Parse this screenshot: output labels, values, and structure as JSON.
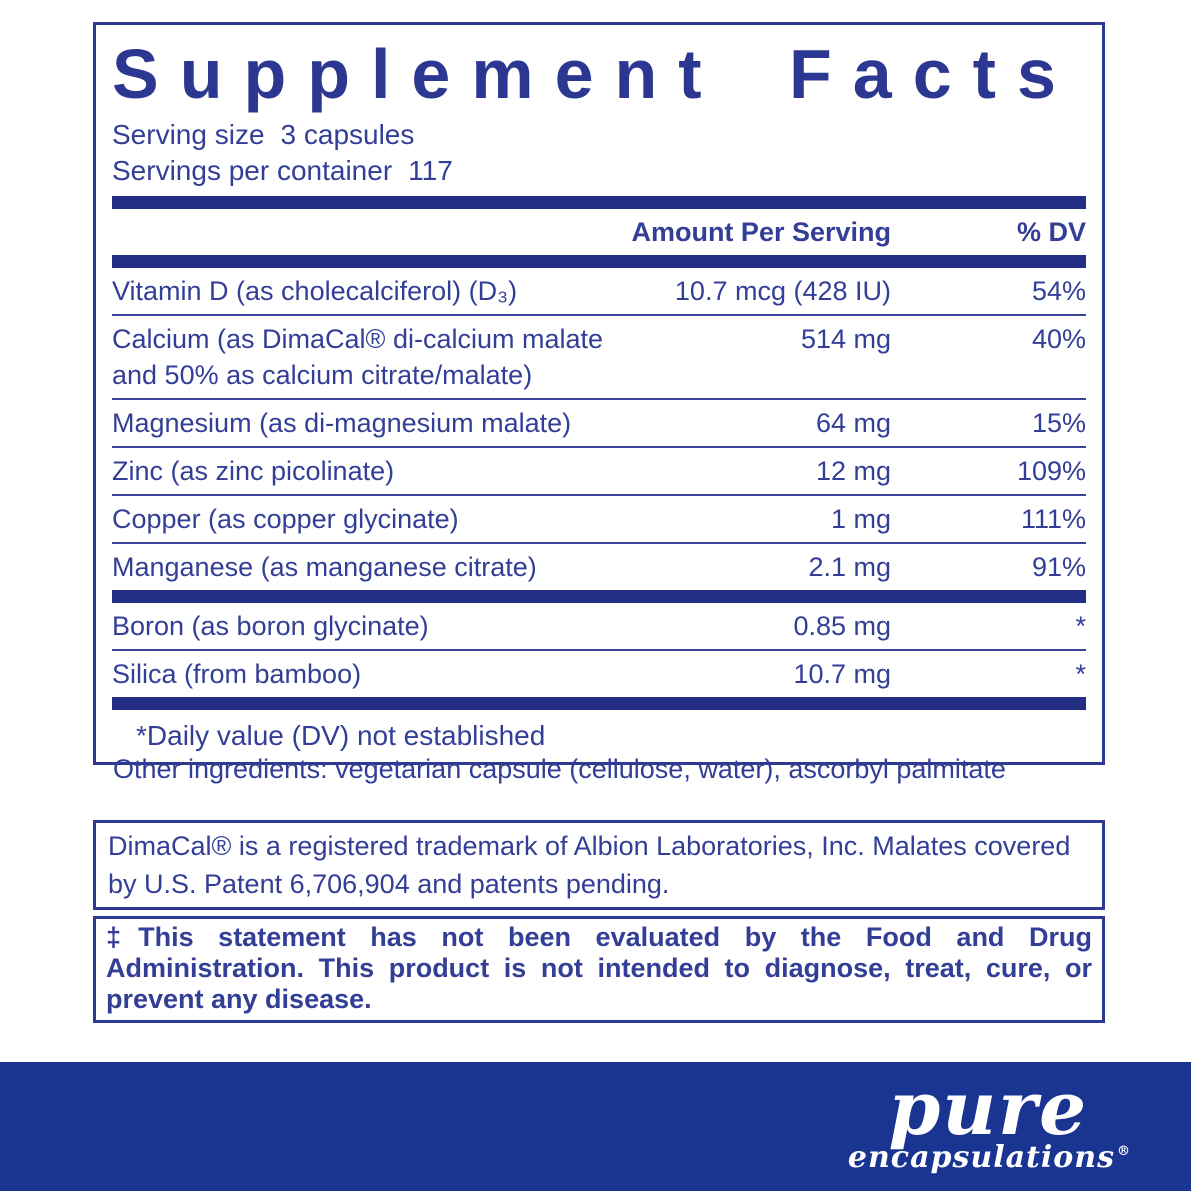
{
  "colors": {
    "text_blue": "#333e96",
    "title_blue": "#2c3791",
    "bar_navy": "#232e84",
    "rule_blue": "#3a459c",
    "border_blue": "#2e3a92",
    "footer_bg": "#1a3492",
    "logo_white": "#ffffff"
  },
  "panel": {
    "title": "Supplement Facts",
    "serving_size_label": "Serving size",
    "serving_size_value": "3 capsules",
    "servings_label": "Servings per container",
    "servings_value": "117",
    "col_amount": "Amount Per Serving",
    "col_dv": "% DV",
    "rows": [
      {
        "name": "Vitamin D (as cholecalciferol) (D₃)",
        "amount": "10.7 mcg (428 IU)",
        "dv": "54%"
      },
      {
        "name": "Calcium (as DimaCal® di-calcium malate and 50% as calcium citrate/malate)",
        "amount": "514 mg",
        "dv": "40%"
      },
      {
        "name": "Magnesium (as di-magnesium malate)",
        "amount": "64 mg",
        "dv": "15%"
      },
      {
        "name": "Zinc (as zinc picolinate)",
        "amount": "12 mg",
        "dv": "109%"
      },
      {
        "name": "Copper (as copper glycinate)",
        "amount": "1 mg",
        "dv": "111%"
      },
      {
        "name": "Manganese (as manganese citrate)",
        "amount": "2.1 mg",
        "dv": "91%"
      },
      {
        "name": "Boron (as boron glycinate)",
        "amount": "0.85 mg",
        "dv": "*"
      },
      {
        "name": "Silica (from bamboo)",
        "amount": "10.7 mg",
        "dv": "*"
      }
    ],
    "footnote": "*Daily value (DV) not established"
  },
  "other_ingredients": "Other ingredients: vegetarian capsule (cellulose, water), ascorbyl palmitate",
  "trademark_note": "DimaCal® is a registered trademark of Albion Laboratories, Inc. Malates covered by U.S. Patent 6,706,904 and patents pending.",
  "fda_disclaimer": "‡This statement has not been evaluated by the Food and Drug Administration. This product is not intended to diagnose, treat, cure, or prevent any disease.",
  "footer": {
    "brand_top": "pure",
    "brand_bottom": "encapsulations",
    "registered_mark": "®"
  }
}
